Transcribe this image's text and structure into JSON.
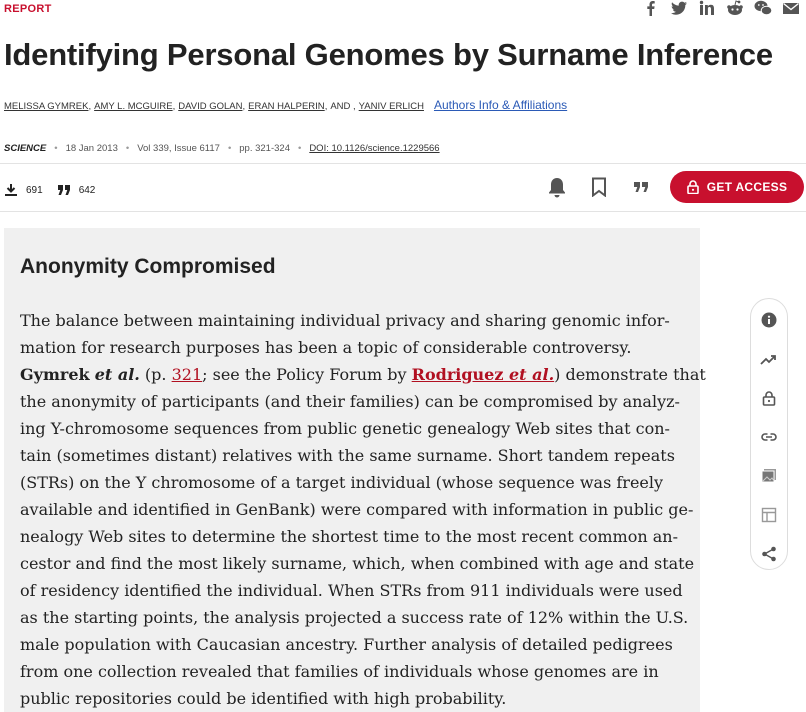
{
  "header": {
    "section_label": "REPORT",
    "social_icons": [
      "facebook-icon",
      "twitter-icon",
      "linkedin-icon",
      "reddit-icon",
      "wechat-icon",
      "email-icon"
    ]
  },
  "article": {
    "title": "Identifying Personal Genomes by Surname Inference",
    "authors": [
      "MELISSA GYMREK",
      "AMY L. MCGUIRE",
      "DAVID GOLAN",
      "ERAN HALPERIN",
      "AND",
      "YANIV ERLICH"
    ],
    "affiliations_link": "Authors Info & Affiliations",
    "journal": "SCIENCE",
    "date": "18 Jan 2013",
    "volume_issue": "Vol 339, Issue 6117",
    "pages": "pp. 321-324",
    "doi": "DOI: 10.1126/science.1229566"
  },
  "metrics": {
    "downloads": "691",
    "citations": "642"
  },
  "actions": {
    "get_access_label": "GET ACCESS",
    "icons": [
      "bell-icon",
      "bookmark-icon",
      "cite-icon"
    ]
  },
  "abstract": {
    "heading": "Anonymity Compromised",
    "line1": "The balance between maintaining individual privacy and sharing genomic infor-",
    "line2": "mation for research purposes has been a topic of considerable controversy.",
    "line3_bold": "Gymrek",
    "line3_bold_italic": "et al.",
    "line3_a": " (p. ",
    "line3_link1": "321",
    "line3_b": "; see the Policy Forum by ",
    "line3_link2_a": "Rodriguez ",
    "line3_link2_b": "et al.",
    "line3_c": ") demonstrate that",
    "line4": "the anonymity of participants (and their families) can be compromised by analyz-",
    "line5": "ing Y-chromosome sequences from public genetic genealogy Web sites that con-",
    "line6": "tain (sometimes distant) relatives with the same surname. Short tandem repeats",
    "line7": "(STRs) on the Y chromosome of a target individual (whose sequence was freely",
    "line8": "available and identified in GenBank) were compared with information in public ge-",
    "line9": "nealogy Web sites to determine the shortest time to the most recent common an-",
    "line10": "cestor and find the most likely surname, which, when combined with age and state",
    "line11": "of residency identified the individual. When STRs from 911 individuals were used",
    "line12": "as the starting points, the analysis projected a success rate of 12% within the U.S.",
    "line13": "male population with Caucasian ancestry. Further analysis of detailed pedigrees",
    "line14": "from one collection revealed that families of individuals whose genomes are in",
    "line15": "public repositories could be identified with high probability."
  },
  "side_rail": {
    "icons": [
      "info-icon",
      "trend-icon",
      "lock-icon",
      "link-icon",
      "images-icon",
      "table-icon",
      "share-icon"
    ]
  },
  "colors": {
    "brand_red": "#c8102e",
    "link_blue": "#2b5ab6",
    "panel_bg": "#f0f0f0"
  }
}
